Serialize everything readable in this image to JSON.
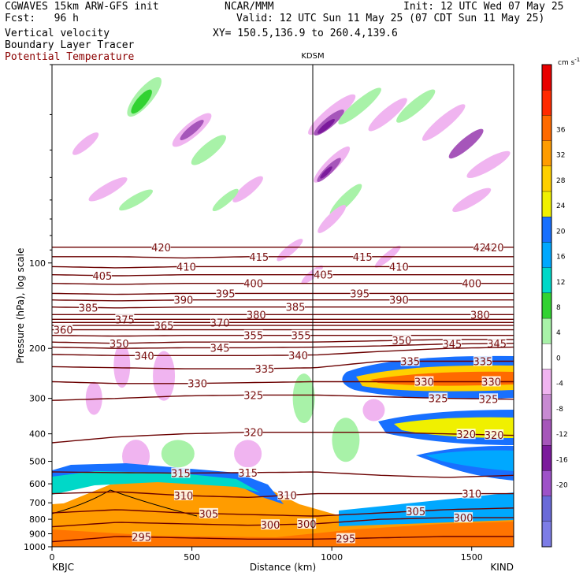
{
  "header": {
    "title_left": "CGWAVES 15km ARW-GFS init",
    "title_mid": "NCAR/MMM",
    "title_right": "Init: 12 UTC Wed 07 May 25",
    "fcst": "Fcst:   96 h",
    "valid": "Valid: 12 UTC Sun 11 May 25 (07 CDT Sun 11 May 25)",
    "field1": "Vertical velocity",
    "field2": "Boundary Layer Tracer",
    "field3": "Potential Temperature",
    "xy": "XY= 150.5,136.9 to 260.4,139.6"
  },
  "colors": {
    "theta_line": "#6b0000",
    "theta_label": "#7a1010",
    "pbl_line": "#000000"
  },
  "chart_data": {
    "type": "cross-section",
    "xlabel": "Distance (km)",
    "ylabel": "Pressure (hPa), log scale",
    "xlim": [
      0,
      1650
    ],
    "ylim": [
      1000,
      20
    ],
    "x_ticks": [
      "0",
      "500",
      "1000",
      "1500"
    ],
    "y_ticks": [
      "100",
      "200",
      "300",
      "400",
      "500",
      "600",
      "700",
      "800",
      "900",
      "1000"
    ],
    "endpoint_left": "KBJC",
    "endpoint_right": "KIND",
    "marker_label": "KDSM",
    "marker_x": 932,
    "colorbar": {
      "units_label": "cm s",
      "units_exp": "-1",
      "levels": [
        -20,
        -16,
        -12,
        -8,
        -4,
        0,
        4,
        8,
        12,
        16,
        20,
        24,
        28,
        32,
        36
      ],
      "colors": [
        "#7d7de6",
        "#6a6ad8",
        "#9e52c8",
        "#7b1a9c",
        "#a656ba",
        "#c88ad2",
        "#f0b4f0",
        "#ffffff",
        "#a8f2a8",
        "#32d232",
        "#00d8c8",
        "#00a8ff",
        "#1870ff",
        "#f0f000",
        "#ffd000",
        "#ff9c00",
        "#ff6a00",
        "#ff2a00",
        "#e80000"
      ]
    },
    "isentropes": [
      {
        "label": "420",
        "p": [
          88,
          88,
          88,
          88,
          88,
          88,
          88,
          88
        ],
        "labels_at": [
          390,
          1540,
          1580
        ]
      },
      {
        "label": "415",
        "p": [
          95,
          95,
          96,
          95,
          95,
          95,
          95,
          95
        ],
        "labels_at": [
          740,
          1110
        ]
      },
      {
        "label": "410",
        "p": [
          103,
          104,
          103,
          103,
          103,
          103,
          103,
          103
        ],
        "labels_at": [
          480,
          1240
        ]
      },
      {
        "label": "405",
        "p": [
          110,
          111,
          110,
          110,
          110,
          110,
          110,
          110
        ],
        "labels_at": [
          180,
          970
        ]
      },
      {
        "label": "400",
        "p": [
          118,
          119,
          118,
          118,
          118,
          118,
          118,
          118
        ],
        "labels_at": [
          720,
          1500
        ]
      },
      {
        "label": "395",
        "p": [
          128,
          129,
          128,
          128,
          128,
          128,
          128,
          128
        ],
        "labels_at": [
          620,
          1100
        ]
      },
      {
        "label": "390",
        "p": [
          135,
          136,
          135,
          135,
          135,
          135,
          135,
          135
        ],
        "labels_at": [
          470,
          1240
        ]
      },
      {
        "label": "385",
        "p": [
          143,
          144,
          143,
          143,
          143,
          143,
          143,
          143
        ],
        "labels_at": [
          130,
          870
        ]
      },
      {
        "label": "380",
        "p": [
          152,
          152,
          152,
          152,
          152,
          152,
          152,
          152
        ],
        "labels_at": [
          730,
          1530
        ]
      },
      {
        "label": "375",
        "p": [
          158,
          158,
          158,
          158,
          158,
          158,
          158,
          158
        ],
        "labels_at": [
          260
        ]
      },
      {
        "label": "370",
        "p": [
          162,
          162,
          162,
          162,
          162,
          162,
          162,
          162
        ],
        "labels_at": [
          600
        ]
      },
      {
        "label": "365",
        "p": [
          166,
          166,
          166,
          166,
          166,
          166,
          166,
          166
        ],
        "labels_at": [
          400
        ]
      },
      {
        "label": "360",
        "p": [
          172,
          172,
          172,
          172,
          172,
          172,
          172,
          172
        ],
        "labels_at": [
          40
        ]
      },
      {
        "label": "355",
        "p": [
          180,
          181,
          180,
          180,
          180,
          180,
          180,
          180
        ],
        "labels_at": [
          720,
          890
        ]
      },
      {
        "label": "350",
        "p": [
          190,
          192,
          190,
          190,
          190,
          188,
          186,
          186
        ],
        "labels_at": [
          240,
          1250
        ]
      },
      {
        "label": "345",
        "p": [
          198,
          200,
          199,
          199,
          198,
          196,
          193,
          192
        ],
        "labels_at": [
          600,
          1430,
          1590
        ]
      },
      {
        "label": "340",
        "p": [
          210,
          212,
          212,
          212,
          211,
          205,
          200,
          198
        ],
        "labels_at": [
          330,
          880
        ]
      },
      {
        "label": "335",
        "p": [
          232,
          234,
          236,
          236,
          234,
          222,
          222,
          222
        ],
        "labels_at": [
          760,
          1280,
          1540
        ]
      },
      {
        "label": "330",
        "p": [
          262,
          266,
          266,
          264,
          262,
          262,
          262,
          262
        ],
        "labels_at": [
          520,
          1330,
          1570
        ]
      },
      {
        "label": "325",
        "p": [
          305,
          300,
          294,
          292,
          292,
          296,
          300,
          302
        ],
        "labels_at": [
          720,
          1380,
          1560
        ]
      },
      {
        "label": "320",
        "p": [
          430,
          410,
          400,
          395,
          395,
          395,
          400,
          405
        ],
        "labels_at": [
          720,
          1480,
          1580
        ]
      },
      {
        "label": "315",
        "p": [
          545,
          548,
          550,
          548,
          545,
          560,
          570,
          560
        ],
        "labels_at": [
          460,
          700
        ]
      },
      {
        "label": "310",
        "p": [
          650,
          640,
          660,
          670,
          650,
          650,
          650,
          650
        ],
        "labels_at": [
          470,
          840,
          1500
        ]
      },
      {
        "label": "305",
        "p": [
          760,
          740,
          760,
          770,
          780,
          760,
          740,
          730
        ],
        "labels_at": [
          560,
          1300
        ]
      },
      {
        "label": "300",
        "p": [
          850,
          820,
          830,
          840,
          830,
          800,
          790,
          790
        ],
        "labels_at": [
          780,
          910,
          1470
        ]
      },
      {
        "label": "295",
        "p": [
          960,
          920,
          930,
          940,
          940,
          930,
          920,
          920
        ],
        "labels_at": [
          320,
          1050
        ]
      }
    ]
  }
}
